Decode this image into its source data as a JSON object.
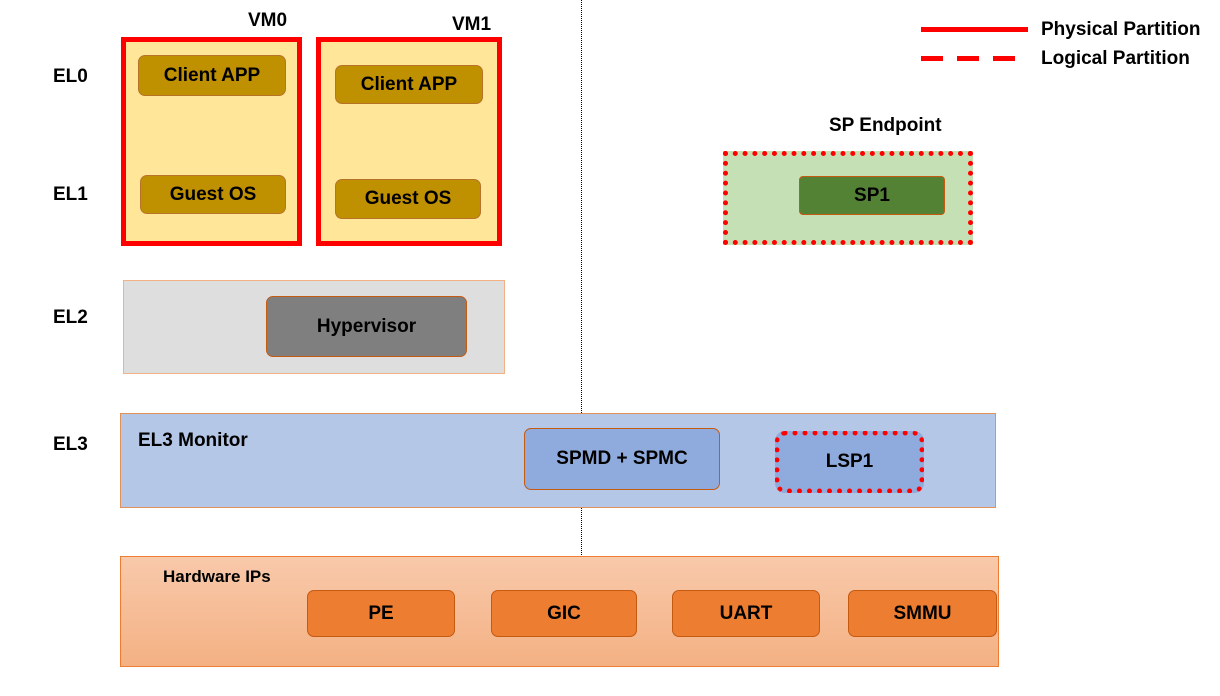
{
  "levels": [
    "EL0",
    "EL1",
    "EL2",
    "EL3"
  ],
  "vms": [
    {
      "label": "VM0",
      "app": "Client APP",
      "os": "Guest OS"
    },
    {
      "label": "VM1",
      "app": "Client APP",
      "os": "Guest OS"
    }
  ],
  "el2": {
    "hypervisor": "Hypervisor"
  },
  "sp": {
    "title": "SP Endpoint",
    "sp1": "SP1"
  },
  "el3": {
    "title": "EL3 Monitor",
    "spmd": "SPMD + SPMC",
    "lsp": "LSP1"
  },
  "hardware": {
    "title": "Hardware IPs",
    "items": [
      "PE",
      "GIC",
      "UART",
      "SMMU"
    ]
  },
  "legend": {
    "physical": "Physical Partition",
    "logical": "Logical Partition"
  },
  "colors": {
    "partition": "#ff0000",
    "vm_fill": "#ffe699",
    "app_fill": "#bf9000",
    "hypervisor": "#7f7f7f",
    "sp_fill": "#c5e0b4",
    "sp1": "#548235",
    "el3_fill": "#b4c7e7",
    "spmd": "#8faadc",
    "hw_fill": "#f8cbad",
    "hw_item": "#ed7d31"
  }
}
